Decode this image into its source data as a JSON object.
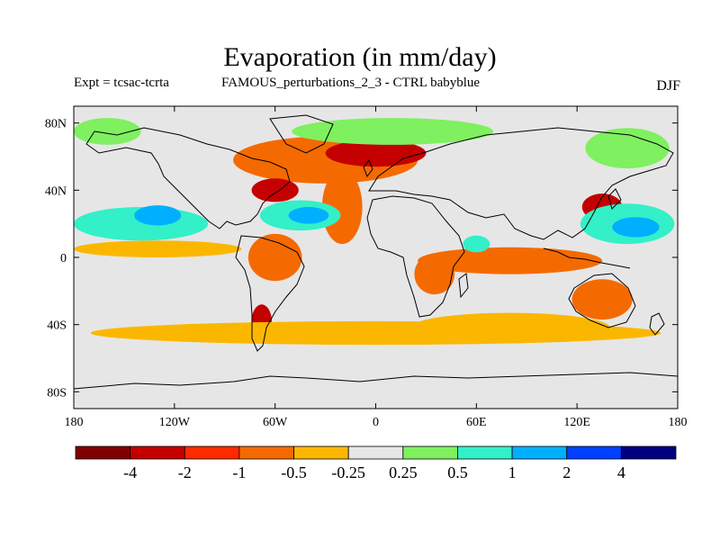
{
  "title": "Evaporation (in mm/day)",
  "experiment": "Expt = tcsac-tcrta",
  "difference_label": "FAMOUS_perturbations_2_3 - CTRL babyblue",
  "season": "DJF",
  "map": {
    "projection": "cylindrical equidistant",
    "lon_range": [
      -180,
      180
    ],
    "lat_range": [
      -90,
      90
    ],
    "ocean_background": "#e6e6e6",
    "x_ticks": [
      {
        "lon": -180,
        "label": "180"
      },
      {
        "lon": -120,
        "label": "120W"
      },
      {
        "lon": -60,
        "label": "60W"
      },
      {
        "lon": 0,
        "label": "0"
      },
      {
        "lon": 60,
        "label": "60E"
      },
      {
        "lon": 120,
        "label": "120E"
      },
      {
        "lon": 180,
        "label": "180"
      }
    ],
    "y_ticks": [
      {
        "lat": 80,
        "label": "80N"
      },
      {
        "lat": 40,
        "label": "40N"
      },
      {
        "lat": 0,
        "label": "0"
      },
      {
        "lat": -40,
        "label": "40S"
      },
      {
        "lat": -80,
        "label": "80S"
      }
    ],
    "field_regions": [
      {
        "name": "north-atlantic-increase",
        "category": -1,
        "lon": -30,
        "lat": 58,
        "dlon": 55,
        "dlat": 14
      },
      {
        "name": "norwegian-sea-strong",
        "category": -2,
        "lon": 0,
        "lat": 62,
        "dlon": 30,
        "dlat": 8
      },
      {
        "name": "gulf-stream-increase",
        "category": -2,
        "lon": -60,
        "lat": 40,
        "dlon": 14,
        "dlat": 7
      },
      {
        "name": "east-atlantic-band",
        "category": -1,
        "lon": -20,
        "lat": 30,
        "dlon": 12,
        "dlat": 22
      },
      {
        "name": "south-america-increase",
        "category": -1,
        "lon": -60,
        "lat": 0,
        "dlon": 16,
        "dlat": 14
      },
      {
        "name": "patagonia-increase",
        "category": -2,
        "lon": -68,
        "lat": -38,
        "dlon": 6,
        "dlat": 10
      },
      {
        "name": "indian-ocean-increase",
        "category": -1,
        "lon": 80,
        "lat": -2,
        "dlon": 55,
        "dlat": 8
      },
      {
        "name": "east-africa-increase",
        "category": -1,
        "lon": 35,
        "lat": -10,
        "dlon": 12,
        "dlat": 12
      },
      {
        "name": "australia-increase",
        "category": -1,
        "lon": 135,
        "lat": -25,
        "dlon": 18,
        "dlat": 12
      },
      {
        "name": "kuroshio-increase",
        "category": -2,
        "lon": 135,
        "lat": 30,
        "dlon": 12,
        "dlat": 8
      },
      {
        "name": "southern-ocean-band",
        "category": -0.25,
        "lon": 0,
        "lat": -45,
        "dlon": 170,
        "dlat": 7
      },
      {
        "name": "south-indian-band",
        "category": -0.25,
        "lon": 80,
        "lat": -42,
        "dlon": 60,
        "dlat": 9
      },
      {
        "name": "tropical-pacific-band",
        "category": -0.25,
        "lon": -130,
        "lat": 5,
        "dlon": 50,
        "dlat": 5
      },
      {
        "name": "north-pacific-decrease",
        "category": 1,
        "lon": -140,
        "lat": 20,
        "dlon": 40,
        "dlat": 10
      },
      {
        "name": "north-pacific-core",
        "category": 2,
        "lon": -130,
        "lat": 25,
        "dlon": 14,
        "dlat": 6
      },
      {
        "name": "west-pacific-decrease",
        "category": 1,
        "lon": 150,
        "lat": 20,
        "dlon": 28,
        "dlat": 12
      },
      {
        "name": "west-pacific-core",
        "category": 2,
        "lon": 155,
        "lat": 18,
        "dlon": 14,
        "dlat": 6
      },
      {
        "name": "subtropical-atlantic-decrease",
        "category": 1,
        "lon": -45,
        "lat": 25,
        "dlon": 24,
        "dlat": 9
      },
      {
        "name": "subtropical-atlantic-core",
        "category": 2,
        "lon": -40,
        "lat": 25,
        "dlon": 12,
        "dlat": 5
      },
      {
        "name": "arctic-atlantic-decrease",
        "category": 0.5,
        "lon": 10,
        "lat": 75,
        "dlon": 60,
        "dlat": 8
      },
      {
        "name": "siberia-decrease",
        "category": 0.5,
        "lon": 150,
        "lat": 65,
        "dlon": 25,
        "dlat": 12
      },
      {
        "name": "alaska-decrease",
        "category": 0.5,
        "lon": -160,
        "lat": 75,
        "dlon": 20,
        "dlat": 8
      },
      {
        "name": "arabian-sea-decrease",
        "category": 1,
        "lon": 60,
        "lat": 8,
        "dlon": 8,
        "dlat": 5
      }
    ]
  },
  "colorbar": {
    "colors": [
      "#7f0000",
      "#c40000",
      "#ff2a00",
      "#f56a00",
      "#fbb700",
      "#e6e6e6",
      "#7ff060",
      "#33f0c8",
      "#00b0ff",
      "#0040ff",
      "#00007f"
    ],
    "labels": [
      "-4",
      "-2",
      "-1",
      "-0.5",
      "-0.25",
      "0.25",
      "0.5",
      "1",
      "2",
      "4"
    ],
    "category_colors": {
      "-4": "#7f0000",
      "-2": "#c40000",
      "-1": "#f56a00",
      "-0.5": "#f56a00",
      "-0.25": "#fbb700",
      "0.5": "#7ff060",
      "1": "#33f0c8",
      "2": "#00b0ff",
      "4": "#0040ff"
    }
  }
}
